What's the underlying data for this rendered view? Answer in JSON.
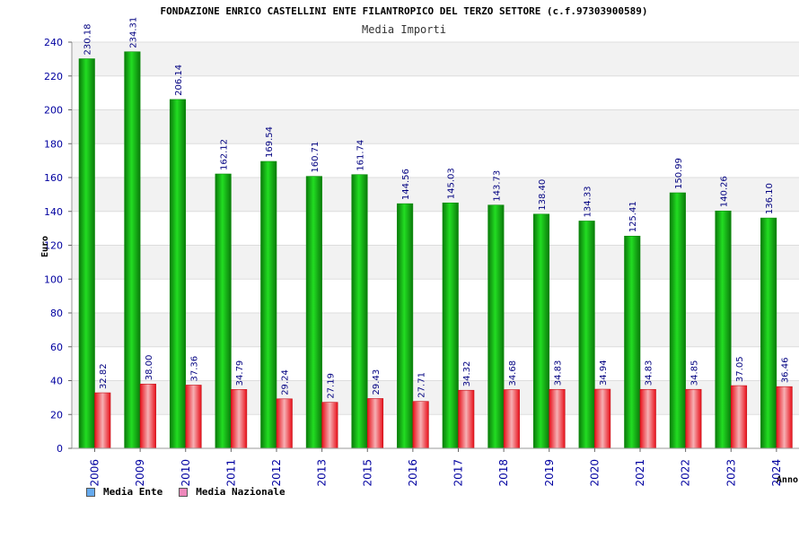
{
  "colors": {
    "ente": "#18b818",
    "nazionale": "#e8202a",
    "legend_ente": "#66aaee",
    "legend_nazionale": "#ee88bb",
    "band": "#f2f2f2",
    "grid": "#dddddd",
    "tick_text": "#0000a0"
  },
  "chart_data": {
    "type": "bar",
    "title": "FONDAZIONE ENRICO CASTELLINI ENTE FILANTROPICO DEL TERZO SETTORE (c.f.97303900589)",
    "subtitle": "Media Importi",
    "xlabel": "Anno",
    "ylabel": "Euro",
    "ylim": [
      0,
      240
    ],
    "yticks": [
      0,
      20,
      40,
      60,
      80,
      100,
      120,
      140,
      160,
      180,
      200,
      220,
      240
    ],
    "grid": true,
    "legend_position": "bottom-left",
    "categories": [
      "2006",
      "2009",
      "2010",
      "2011",
      "2012",
      "2013",
      "2015",
      "2016",
      "2017",
      "2018",
      "2019",
      "2020",
      "2021",
      "2022",
      "2023",
      "2024"
    ],
    "series": [
      {
        "name": "Media Ente",
        "values": [
          230.18,
          234.31,
          206.14,
          162.12,
          169.54,
          160.71,
          161.74,
          144.56,
          145.03,
          143.73,
          138.4,
          134.33,
          125.41,
          150.99,
          140.26,
          136.1
        ],
        "labels": [
          "230.18",
          "234.31",
          "206.14",
          "162.12",
          "169.54",
          "160.71",
          "161.74",
          "144.56",
          "145.03",
          "143.73",
          "138.40",
          "134.33",
          "125.41",
          "150.99",
          "140.26",
          "136.10"
        ]
      },
      {
        "name": "Media Nazionale",
        "values": [
          32.82,
          38.0,
          37.36,
          34.79,
          29.24,
          27.19,
          29.43,
          27.71,
          34.32,
          34.68,
          34.83,
          34.94,
          34.83,
          34.85,
          37.05,
          36.46
        ],
        "labels": [
          "32.82",
          "38.00",
          "37.36",
          "34.79",
          "29.24",
          "27.19",
          "29.43",
          "27.71",
          "34.32",
          "34.68",
          "34.83",
          "34.94",
          "34.83",
          "34.85",
          "37.05",
          "36.46"
        ]
      }
    ]
  }
}
